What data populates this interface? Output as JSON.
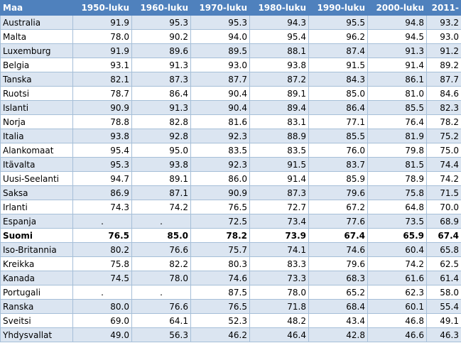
{
  "headers": [
    "Maa",
    "1950-luku",
    "1960-luku",
    "1970-luku",
    "1980-luku",
    "1990-luku",
    "2000-luku",
    "2011-"
  ],
  "rows": [
    {
      "country": "Australia",
      "values": [
        "91.9",
        "95.3",
        "95.3",
        "94.3",
        "95.5",
        "94.8",
        "93.2"
      ]
    },
    {
      "country": "Malta",
      "values": [
        "78.0",
        "90.2",
        "94.0",
        "95.4",
        "96.2",
        "94.5",
        "93.0"
      ]
    },
    {
      "country": "Luxemburg",
      "values": [
        "91.9",
        "89.6",
        "89.5",
        "88.1",
        "87.4",
        "91.3",
        "91.2"
      ]
    },
    {
      "country": "Belgia",
      "values": [
        "93.1",
        "91.3",
        "93.0",
        "93.8",
        "91.5",
        "91.4",
        "89.2"
      ]
    },
    {
      "country": "Tanska",
      "values": [
        "82.1",
        "87.3",
        "87.7",
        "87.2",
        "84.3",
        "86.1",
        "87.7"
      ]
    },
    {
      "country": "Ruotsi",
      "values": [
        "78.7",
        "86.4",
        "90.4",
        "89.1",
        "85.0",
        "81.0",
        "84.6"
      ]
    },
    {
      "country": "Islanti",
      "values": [
        "90.9",
        "91.3",
        "90.4",
        "89.4",
        "86.4",
        "85.5",
        "82.3"
      ]
    },
    {
      "country": "Norja",
      "values": [
        "78.8",
        "82.8",
        "81.6",
        "83.1",
        "77.1",
        "76.4",
        "78.2"
      ]
    },
    {
      "country": "Italia",
      "values": [
        "93.8",
        "92.8",
        "92.3",
        "88.9",
        "85.5",
        "81.9",
        "75.2"
      ]
    },
    {
      "country": "Alankomaat",
      "values": [
        "95.4",
        "95.0",
        "83.5",
        "83.5",
        "76.0",
        "79.8",
        "75.0"
      ]
    },
    {
      "country": "Itävalta",
      "values": [
        "95.3",
        "93.8",
        "92.3",
        "91.5",
        "83.7",
        "81.5",
        "74.4"
      ]
    },
    {
      "country": "Uusi-Seelanti",
      "values": [
        "94.7",
        "89.1",
        "86.0",
        "91.4",
        "85.9",
        "78.9",
        "74.2"
      ]
    },
    {
      "country": "Saksa",
      "values": [
        "86.9",
        "87.1",
        "90.9",
        "87.3",
        "79.6",
        "75.8",
        "71.5"
      ]
    },
    {
      "country": "Irlanti",
      "values": [
        "74.3",
        "74.2",
        "76.5",
        "72.7",
        "67.2",
        "64.8",
        "70.0"
      ]
    },
    {
      "country": "Espanja",
      "values": [
        ".",
        ".",
        "72.5",
        "73.4",
        "77.6",
        "73.5",
        "68.9"
      ]
    },
    {
      "country": "Suomi",
      "values": [
        "76.5",
        "85.0",
        "78.2",
        "73.9",
        "67.4",
        "65.9",
        "67.4"
      ]
    },
    {
      "country": "Iso-Britannia",
      "values": [
        "80.2",
        "76.6",
        "75.7",
        "74.1",
        "74.6",
        "60.4",
        "65.8"
      ]
    },
    {
      "country": "Kreikka",
      "values": [
        "75.8",
        "82.2",
        "80.3",
        "83.3",
        "79.6",
        "74.2",
        "62.5"
      ]
    },
    {
      "country": "Kanada",
      "values": [
        "74.5",
        "78.0",
        "74.6",
        "73.3",
        "68.3",
        "61.6",
        "61.4"
      ]
    },
    {
      "country": "Portugali",
      "values": [
        ".",
        ".",
        "87.5",
        "78.0",
        "65.2",
        "62.3",
        "58.0"
      ]
    },
    {
      "country": "Ranska",
      "values": [
        "80.0",
        "76.6",
        "76.5",
        "71.8",
        "68.4",
        "60.1",
        "55.4"
      ]
    },
    {
      "country": "Sveitsi",
      "values": [
        "69.0",
        "64.1",
        "52.3",
        "48.2",
        "43.4",
        "46.8",
        "49.1"
      ]
    },
    {
      "country": "Yhdysvallat",
      "values": [
        "49.0",
        "56.3",
        "46.2",
        "46.4",
        "42.8",
        "46.6",
        "46.3"
      ]
    }
  ],
  "highlight_row": "Suomi"
}
